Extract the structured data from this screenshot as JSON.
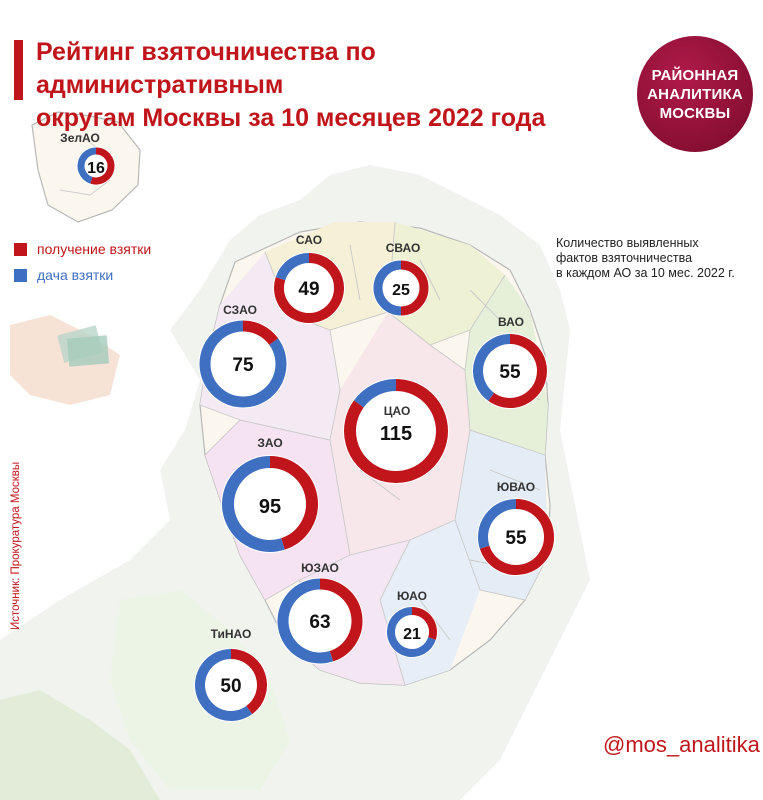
{
  "title_lines": [
    "Рейтинг взяточничества по административным",
    "округам Москвы за 10 месяцев 2022 года"
  ],
  "logo_lines": [
    "РАЙОННАЯ",
    "АНАЛИТИКА",
    "МОСКВЫ"
  ],
  "legend": [
    {
      "label": "получение взятки",
      "color": "#c0161b"
    },
    {
      "label": "дача взятки",
      "color": "#3f6fc0"
    }
  ],
  "note_lines": [
    "Количество выявленных",
    "фактов взяточничества",
    "в каждом АО за 10 мес. 2022 г."
  ],
  "source": "Источник: Прокуратура Москвы",
  "handle": "@mos_analitika",
  "chart_data": {
    "type": "pie",
    "series_names": [
      "получение взятки",
      "дача взятки"
    ],
    "colors": {
      "received": "#c0161b",
      "given": "#3f6fc0"
    },
    "districts": [
      {
        "name": "ЗелАО",
        "total": 16,
        "received_share": 0.55
      },
      {
        "name": "САО",
        "total": 49,
        "received_share": 0.8
      },
      {
        "name": "СВАО",
        "total": 25,
        "received_share": 0.5
      },
      {
        "name": "СЗАО",
        "total": 75,
        "received_share": 0.15
      },
      {
        "name": "ВАО",
        "total": 55,
        "received_share": 0.6
      },
      {
        "name": "ЦАО",
        "total": 115,
        "received_share": 0.85
      },
      {
        "name": "ЗАО",
        "total": 95,
        "received_share": 0.45
      },
      {
        "name": "ЮВАО",
        "total": 55,
        "received_share": 0.7
      },
      {
        "name": "ЮЗАО",
        "total": 63,
        "received_share": 0.45
      },
      {
        "name": "ЮАО",
        "total": 21,
        "received_share": 0.3
      },
      {
        "name": "ТиНАО",
        "total": 50,
        "received_share": 0.4
      }
    ]
  }
}
